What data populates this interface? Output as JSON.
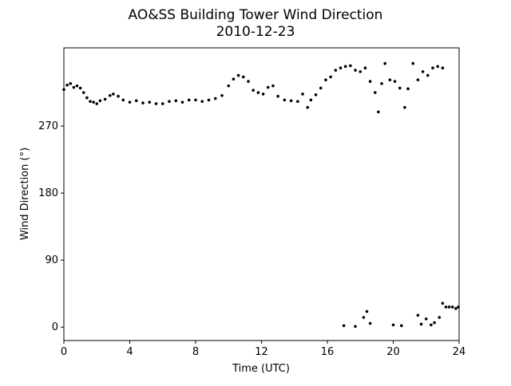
{
  "chart_data": {
    "type": "scatter",
    "title": "AO&SS Building Tower Wind Direction",
    "subtitle": "2010-12-23",
    "x_label": "Time (UTC)",
    "y_label": "Wind Direction (°)",
    "color": "#000000",
    "grid": false,
    "xlim": [
      0,
      24
    ],
    "xticks": [
      0,
      4,
      8,
      12,
      16,
      20,
      24
    ],
    "ylim": [
      -18,
      375
    ],
    "yticks": [
      0,
      90,
      180,
      270
    ],
    "x": [
      0,
      0.2,
      0.4,
      0.6,
      0.8,
      1.0,
      1.2,
      1.4,
      1.6,
      1.8,
      2.0,
      2.2,
      2.5,
      2.8,
      3.0,
      3.3,
      3.6,
      4.0,
      4.4,
      4.8,
      5.2,
      5.6,
      6.0,
      6.4,
      6.8,
      7.2,
      7.6,
      8.0,
      8.4,
      8.8,
      9.2,
      9.6,
      10.0,
      10.3,
      10.6,
      10.9,
      11.2,
      11.5,
      11.8,
      12.1,
      12.4,
      12.7,
      13.0,
      13.4,
      13.8,
      14.2,
      14.5,
      14.8,
      15.0,
      15.3,
      15.6,
      15.9,
      16.2,
      16.5,
      16.8,
      17.1,
      17.4,
      17.7,
      18.0,
      18.3,
      18.6,
      18.9,
      19.1,
      19.3,
      19.5,
      19.8,
      20.1,
      20.4,
      20.7,
      20.9,
      21.2,
      21.5,
      21.8,
      22.1,
      22.4,
      22.7,
      23.0,
      17.0,
      17.7,
      18.2,
      18.4,
      18.6,
      20.0,
      20.5,
      21.5,
      21.7,
      22.0,
      22.3,
      22.5,
      22.8,
      23.0,
      23.2,
      23.4,
      23.6,
      23.8,
      23.95
    ],
    "values": [
      319,
      325,
      327,
      322,
      324,
      321,
      315,
      308,
      303,
      302,
      300,
      304,
      306,
      311,
      313,
      310,
      305,
      302,
      304,
      301,
      302,
      300,
      300,
      303,
      304,
      302,
      305,
      305,
      303,
      305,
      307,
      311,
      324,
      333,
      338,
      336,
      330,
      318,
      315,
      313,
      322,
      324,
      310,
      305,
      304,
      303,
      313,
      295,
      305,
      312,
      321,
      332,
      336,
      345,
      348,
      350,
      351,
      345,
      343,
      348,
      330,
      315,
      289,
      327,
      354,
      332,
      330,
      321,
      295,
      320,
      354,
      332,
      343,
      338,
      348,
      350,
      348,
      2,
      1,
      13,
      21,
      5,
      3,
      2,
      16,
      4,
      11,
      3,
      6,
      13,
      32,
      27,
      27,
      27,
      25,
      27
    ]
  }
}
